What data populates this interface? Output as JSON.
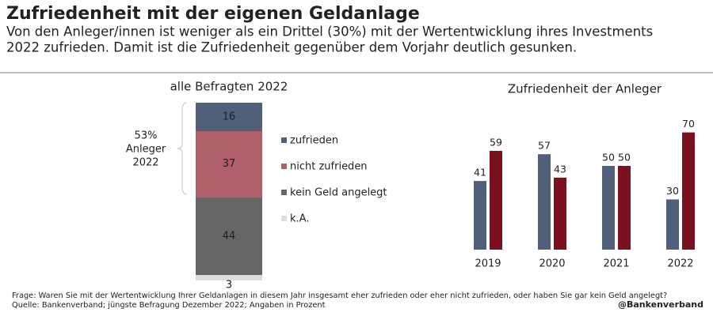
{
  "header": {
    "title": "Zufriedenheit mit der eigenen Geldanlage",
    "subtitle": [
      "Von den Anleger/innen ist weniger als ein Drittel (30%) mit der Wertentwicklung ihres Investments",
      "2022 zufrieden. Damit ist die Zufriedenheit gegenüber dem Vorjahr deutlich gesunken."
    ]
  },
  "chart_data": [
    {
      "type": "stacked-bar",
      "title": "alle Befragten 2022",
      "categories": [
        "2022"
      ],
      "annotation": [
        "53%",
        "Anleger",
        "2022"
      ],
      "series": [
        {
          "name": "zufrieden",
          "color": "#4f6078",
          "values": [
            16
          ]
        },
        {
          "name": "nicht zufrieden",
          "color": "#b0606a",
          "values": [
            37
          ]
        },
        {
          "name": "kein Geld angelegt",
          "color": "#666666",
          "values": [
            44
          ]
        },
        {
          "name": "k.A.",
          "color": "#dddddd",
          "values": [
            3
          ]
        }
      ]
    },
    {
      "type": "grouped-bar",
      "title": "Zufriedenheit der Anleger",
      "categories": [
        "2019",
        "2020",
        "2021",
        "2022"
      ],
      "series": [
        {
          "color": "#4f6078",
          "values": [
            41,
            57,
            50,
            30
          ]
        },
        {
          "color": "#7b1020",
          "values": [
            59,
            43,
            50,
            70
          ]
        }
      ]
    }
  ],
  "footnotes": [
    "Frage: Waren Sie mit der Wertentwicklung Ihrer Geldanlagen in diesem Jahr insgesamt eher zufrieden oder eher nicht zufrieden, oder haben Sie gar kein Geld angelegt?",
    "Quelle: Bankenverband; jüngste Befragung Dezember 2022; Angaben in Prozent"
  ],
  "source_logo": "@Bankenverband"
}
